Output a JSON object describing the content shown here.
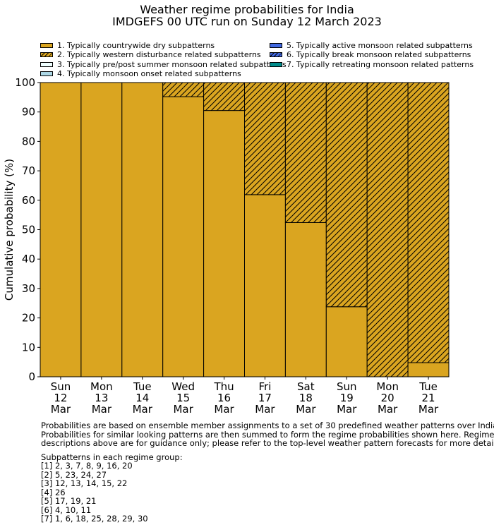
{
  "chart_data": {
    "type": "bar",
    "stacked": true,
    "title": "Weather regime probabilities for India",
    "subtitle": "IMDGEFS 00 UTC run on Sunday 12 March 2023",
    "xlabel": "",
    "ylabel": "Cumulative probability (%)",
    "ylim": [
      0,
      100
    ],
    "yticks": [
      "0",
      "10",
      "20",
      "30",
      "40",
      "50",
      "60",
      "70",
      "80",
      "90",
      "100"
    ],
    "categories": [
      [
        "Sun",
        "12",
        "Mar"
      ],
      [
        "Mon",
        "13",
        "Mar"
      ],
      [
        "Tue",
        "14",
        "Mar"
      ],
      [
        "Wed",
        "15",
        "Mar"
      ],
      [
        "Thu",
        "16",
        "Mar"
      ],
      [
        "Fri",
        "17",
        "Mar"
      ],
      [
        "Sat",
        "18",
        "Mar"
      ],
      [
        "Sun",
        "19",
        "Mar"
      ],
      [
        "Mon",
        "20",
        "Mar"
      ],
      [
        "Tue",
        "21",
        "Mar"
      ]
    ],
    "series": [
      {
        "name": "1. Typically countrywide dry subpatterns",
        "color": "#DAA520",
        "hatch": false,
        "values": [
          100,
          100,
          100,
          95.2,
          90.5,
          61.9,
          52.4,
          23.8,
          0,
          4.8
        ]
      },
      {
        "name": "2. Typically western disturbance related subpatterns",
        "color": "#DAA520",
        "hatch": true,
        "values": [
          0,
          0,
          0,
          4.8,
          9.5,
          38.1,
          47.6,
          76.2,
          100,
          95.2
        ]
      },
      {
        "name": "3. Typically pre/post summer monsoon related subpatterns",
        "color": "#F0FFFF",
        "hatch": false,
        "values": [
          0,
          0,
          0,
          0,
          0,
          0,
          0,
          0,
          0,
          0
        ]
      },
      {
        "name": "4. Typically monsoon onset related subpatterns",
        "color": "#ADD8E6",
        "hatch": false,
        "values": [
          0,
          0,
          0,
          0,
          0,
          0,
          0,
          0,
          0,
          0
        ]
      },
      {
        "name": "5. Typically active monsoon related subpatterns",
        "color": "#4169E1",
        "hatch": false,
        "values": [
          0,
          0,
          0,
          0,
          0,
          0,
          0,
          0,
          0,
          0
        ]
      },
      {
        "name": "6. Typically break monsoon related subpatterns",
        "color": "#4169E1",
        "hatch": true,
        "values": [
          0,
          0,
          0,
          0,
          0,
          0,
          0,
          0,
          0,
          0
        ]
      },
      {
        "name": "7. Typically retreating monsoon related patterns",
        "color": "#008B8B",
        "hatch": false,
        "values": [
          0,
          0,
          0,
          0,
          0,
          0,
          0,
          0,
          0,
          0
        ]
      }
    ],
    "legend_position": "top",
    "grid": false
  },
  "notes": {
    "para1": "Probabilities are based on ensemble member assignments to a set of 30 predefined weather patterns over India.\nProbabilities for similar looking patterns are then summed to form the regime probabilities shown here. Regime\ndescriptions above are for guidance only; please refer to the top-level weather pattern forecasts for more detail.",
    "groups_heading": "Subpatterns in each regime group:",
    "groups": [
      "[1] 2, 3, 7, 8, 9, 16, 20",
      "[2] 5, 23, 24, 27",
      "[3] 12, 13, 14, 15, 22",
      "[4] 26",
      "[5] 17, 19, 21",
      "[6] 4, 10, 11",
      "[7] 1, 6, 18, 25, 28, 29, 30"
    ]
  }
}
